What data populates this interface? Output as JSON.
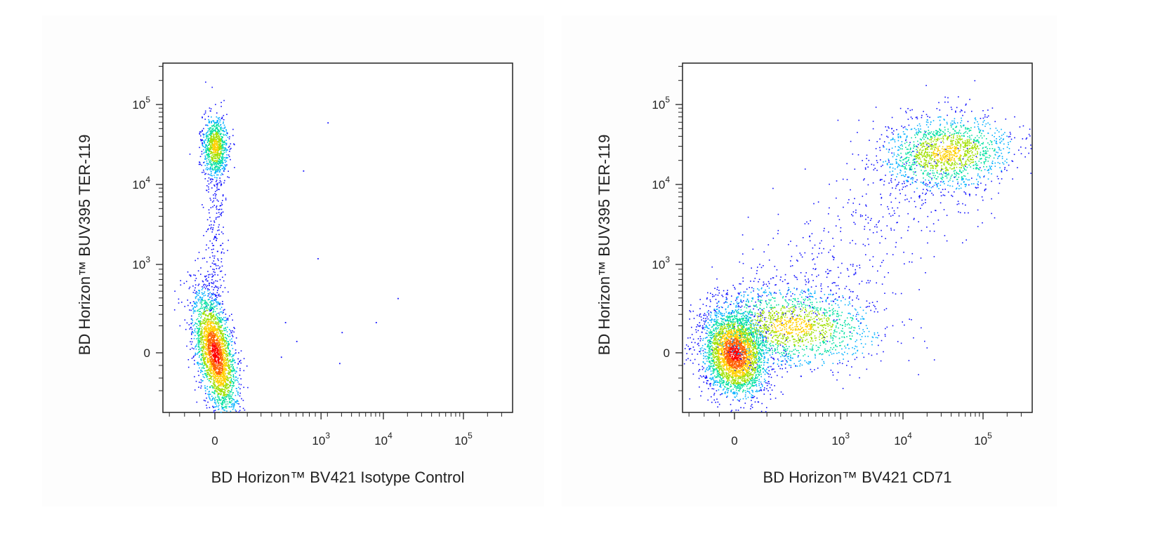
{
  "chart_data": [
    {
      "type": "scatter",
      "title": "",
      "xlabel": "BD Horizon™ BV421 Isotype Control",
      "ylabel": "BD Horizon™ BUV395 TER-119",
      "x_scale": "biexponential",
      "y_scale": "biexponential",
      "x_ticks": [
        {
          "value": 0,
          "label": "0"
        },
        {
          "value": 1000,
          "label": "10",
          "exp": "3"
        },
        {
          "value": 10000,
          "label": "10",
          "exp": "4"
        },
        {
          "value": 100000,
          "label": "10",
          "exp": "5"
        }
      ],
      "y_ticks": [
        {
          "value": 0,
          "label": "0"
        },
        {
          "value": 1000,
          "label": "10",
          "exp": "3"
        },
        {
          "value": 10000,
          "label": "10",
          "exp": "4"
        },
        {
          "value": 100000,
          "label": "10",
          "exp": "5"
        }
      ],
      "populations": [
        {
          "name": "",
          "x_center": 0,
          "y_center": 30000,
          "count": 900,
          "density": "medium"
        },
        {
          "name": "",
          "x_center": 0,
          "y_center": 2000,
          "count": 220,
          "density": "low"
        },
        {
          "name": "",
          "x_center": 0,
          "y_center": 0,
          "count": 2600,
          "density": "high"
        }
      ],
      "outliers": [
        [
          2000,
          60000
        ],
        [
          700,
          15000
        ],
        [
          1500,
          1200
        ],
        [
          15000,
          400
        ],
        [
          3000,
          60
        ],
        [
          8000,
          130
        ],
        [
          450,
          130
        ],
        [
          400,
          -30
        ],
        [
          600,
          20
        ],
        [
          2800,
          -80
        ]
      ]
    },
    {
      "type": "scatter",
      "title": "",
      "xlabel": "BD Horizon™ BV421 CD71",
      "ylabel": "BD Horizon™ BUV395 TER-119",
      "x_scale": "biexponential",
      "y_scale": "biexponential",
      "x_ticks": [
        {
          "value": 0,
          "label": "0"
        },
        {
          "value": 1000,
          "label": "10",
          "exp": "3"
        },
        {
          "value": 10000,
          "label": "10",
          "exp": "4"
        },
        {
          "value": 100000,
          "label": "10",
          "exp": "5"
        }
      ],
      "y_ticks": [
        {
          "value": 0,
          "label": "0"
        },
        {
          "value": 1000,
          "label": "10",
          "exp": "3"
        },
        {
          "value": 10000,
          "label": "10",
          "exp": "4"
        },
        {
          "value": 100000,
          "label": "10",
          "exp": "5"
        }
      ],
      "populations": [
        {
          "name": "",
          "x_center": 0,
          "y_center": 0,
          "count": 3200,
          "density": "high"
        },
        {
          "name": "",
          "x_center": 300,
          "y_center": 100,
          "count": 1600,
          "density": "medium"
        },
        {
          "name": "",
          "x_center": 35000,
          "y_center": 25000,
          "count": 1500,
          "density": "medium"
        },
        {
          "name": "",
          "x_center": 3000,
          "y_center": 2000,
          "count": 500,
          "density": "low"
        }
      ]
    }
  ],
  "colormap": [
    "#1010ff",
    "#00b0ff",
    "#00e0a0",
    "#a0e000",
    "#ffd000",
    "#ff6000",
    "#ff0000"
  ]
}
